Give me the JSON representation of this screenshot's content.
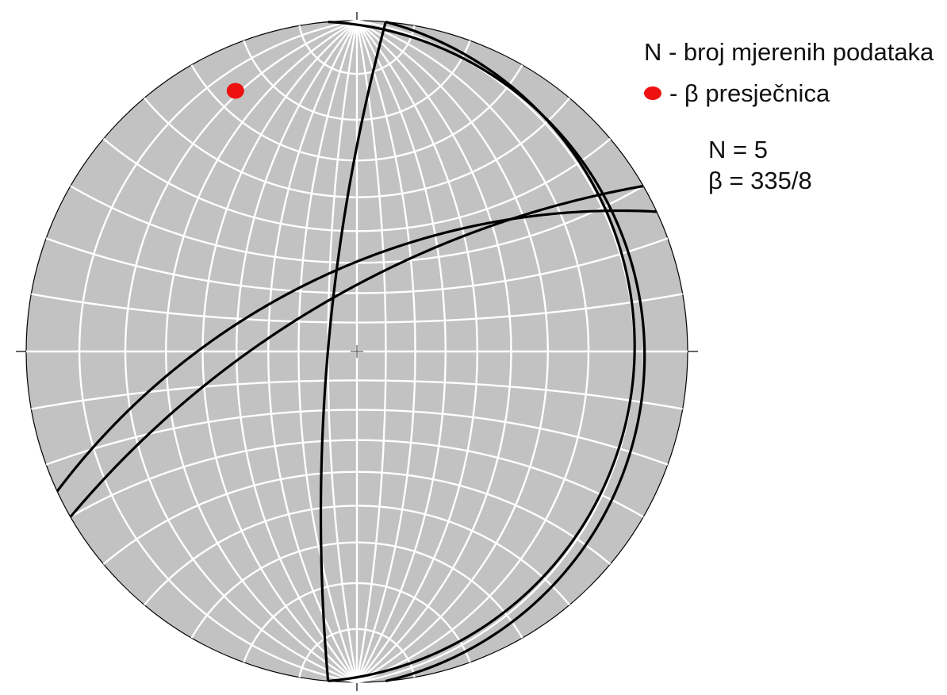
{
  "legend": {
    "n_description": "N - broj mjerenih podataka",
    "beta_description": "- β presječnica"
  },
  "stats": {
    "n_text": "N = 5",
    "beta_text": "β = 335/8"
  },
  "stereonet": {
    "projection": "equal-angle (Wulff) lower hemisphere",
    "grid_interval_deg": 10,
    "planes": [
      {
        "strike": 5,
        "dip": 10
      },
      {
        "strike": 355,
        "dip": 8
      },
      {
        "strike": 185,
        "dip": 80
      },
      {
        "strike": 240,
        "dip": 70
      },
      {
        "strike": 245,
        "dip": 62
      }
    ],
    "beta": {
      "trend": 335,
      "plunge": 8
    },
    "colors": {
      "net_fill": "#c2c2c2",
      "grid": "#ffffff",
      "planes": "#000000",
      "beta_point": "#ee1111"
    }
  }
}
